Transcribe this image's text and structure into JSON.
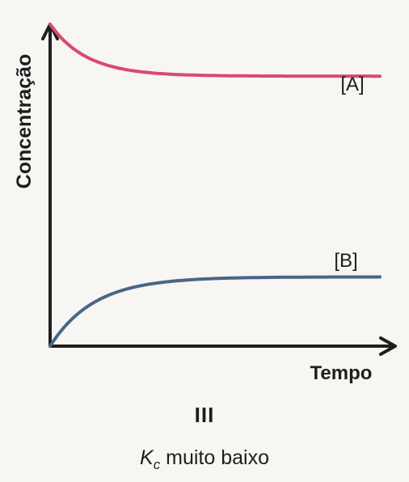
{
  "chart_data": {
    "type": "line",
    "xlabel": "Tempo",
    "ylabel": "Concentração",
    "x_ticks": [],
    "y_ticks": [],
    "grid": false,
    "series": [
      {
        "name": "[A]",
        "color": "#d94a6c",
        "shape": "exponential-decay",
        "start": 0.93,
        "equilibrium": 0.78
      },
      {
        "name": "[B]",
        "color": "#4a6688",
        "shape": "exponential-rise",
        "start": 0.0,
        "equilibrium": 0.2
      }
    ],
    "xlim": [
      0,
      1
    ],
    "ylim": [
      0,
      1
    ]
  },
  "caption": {
    "panel_label": "III",
    "kc_symbol": "K",
    "kc_subscript": "c",
    "kc_text": " muito baixo"
  }
}
